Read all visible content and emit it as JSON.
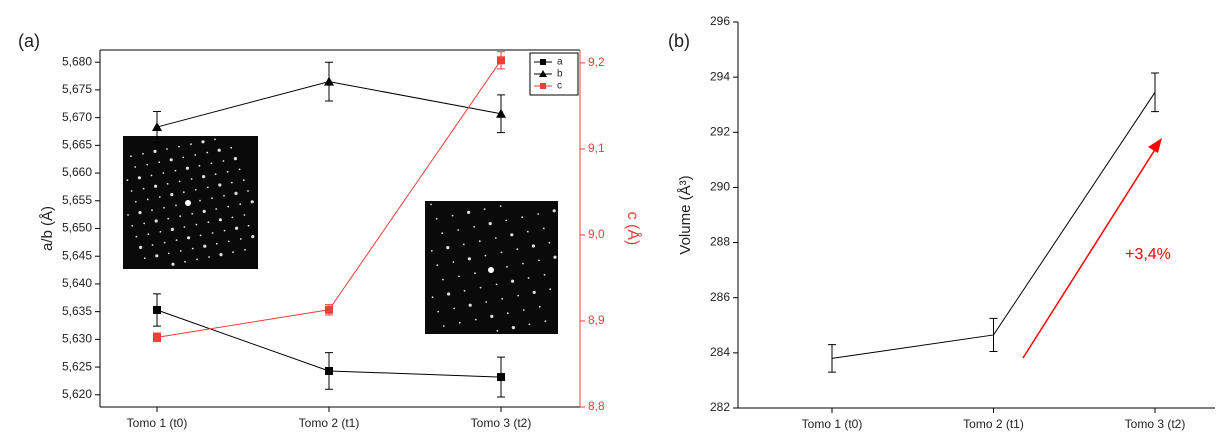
{
  "chart_data": [
    {
      "type": "line",
      "panel_label": "(a)",
      "categories": [
        "Tomo 1 (t0)",
        "Tomo 2 (t1)",
        "Tomo 3 (t2)"
      ],
      "y_label": "a/b (Å)",
      "y2_label": "c (Å)",
      "y2_color": "#e8413c",
      "ylim": [
        5.6178,
        5.6822
      ],
      "yticks": [
        {
          "value": 5.62,
          "label": "5,620"
        },
        {
          "value": 5.625,
          "label": "5,625"
        },
        {
          "value": 5.63,
          "label": "5,630"
        },
        {
          "value": 5.635,
          "label": "5,635"
        },
        {
          "value": 5.64,
          "label": "5,640"
        },
        {
          "value": 5.645,
          "label": "5,645"
        },
        {
          "value": 5.65,
          "label": "5,650"
        },
        {
          "value": 5.655,
          "label": "5,655"
        },
        {
          "value": 5.66,
          "label": "5,660"
        },
        {
          "value": 5.665,
          "label": "5,665"
        },
        {
          "value": 5.67,
          "label": "5,670"
        },
        {
          "value": 5.675,
          "label": "5,675"
        },
        {
          "value": 5.68,
          "label": "5,680"
        }
      ],
      "y2lim": [
        8.8,
        9.215
      ],
      "y2ticks": [
        {
          "value": 8.8,
          "label": "8,8"
        },
        {
          "value": 8.9,
          "label": "8,9"
        },
        {
          "value": 9.0,
          "label": "9,0"
        },
        {
          "value": 9.1,
          "label": "9,1"
        },
        {
          "value": 9.2,
          "label": "9,2"
        }
      ],
      "legend": "top-right",
      "series": [
        {
          "name": "a",
          "color": "#000000",
          "marker": "square",
          "values": [
            5.6353,
            5.6243,
            5.6232
          ],
          "errors": [
            0.0029,
            0.0033,
            0.0036
          ]
        },
        {
          "name": "b",
          "color": "#000000",
          "marker": "triangle",
          "values": [
            5.6683,
            5.6765,
            5.6707
          ],
          "errors": [
            0.0028,
            0.0035,
            0.0034
          ]
        },
        {
          "name": "c",
          "color": "#e8413c",
          "marker": "square",
          "axis": "y2",
          "values": [
            8.881,
            8.913,
            9.203
          ],
          "errors": [
            0.005,
            0.006,
            0.01
          ]
        }
      ]
    },
    {
      "type": "line",
      "panel_label": "(b)",
      "categories": [
        "Tomo 1 (t0)",
        "Tomo 2 (t1)",
        "Tomo 3 (t2)"
      ],
      "y_label": "Volume (Å³)",
      "ylim": [
        282,
        296
      ],
      "yticks": [
        282,
        284,
        286,
        288,
        290,
        292,
        294,
        296
      ],
      "color": "#000000",
      "values": [
        283.8,
        284.65,
        293.45
      ],
      "errors": [
        0.5,
        0.6,
        0.7
      ],
      "annotation": "+3,4%",
      "annotation_color": "#ff0000"
    }
  ]
}
